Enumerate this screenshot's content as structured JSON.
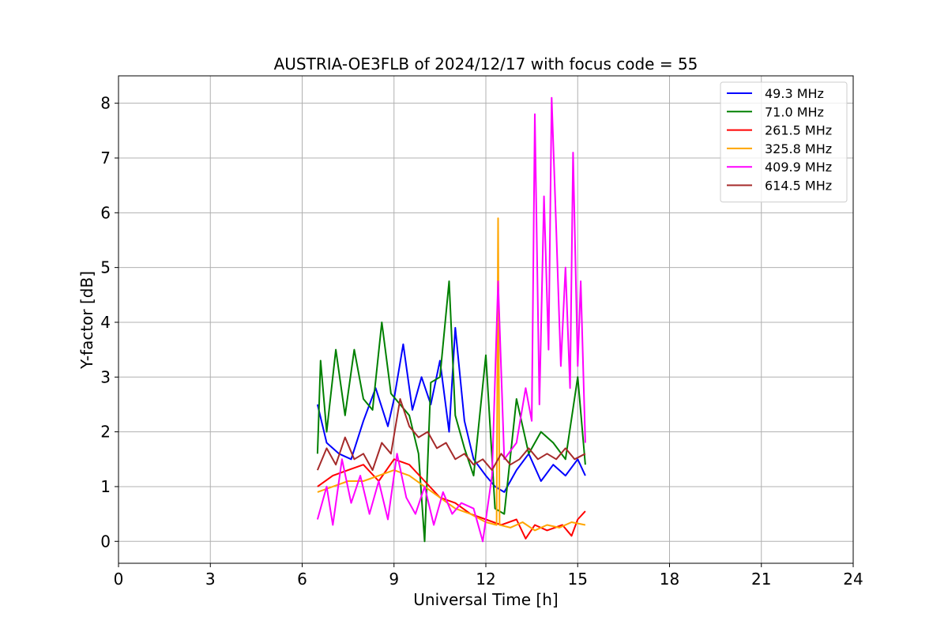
{
  "chart_data": {
    "type": "line",
    "title": "AUSTRIA-OE3FLB of 2024/12/17 with focus code = 55",
    "xlabel": "Universal Time [h]",
    "ylabel": "Y-factor [dB]",
    "xlim": [
      0,
      24
    ],
    "ylim": [
      -0.4,
      8.5
    ],
    "xticks": [
      0,
      3,
      6,
      9,
      12,
      15,
      18,
      21,
      24
    ],
    "yticks": [
      0,
      1,
      2,
      3,
      4,
      5,
      6,
      7,
      8
    ],
    "grid": true,
    "legend_position": "top-right",
    "series": [
      {
        "name": " 49.3 MHz",
        "color": "#0000ff",
        "points": [
          [
            6.5,
            2.5
          ],
          [
            6.8,
            1.8
          ],
          [
            7.2,
            1.6
          ],
          [
            7.6,
            1.5
          ],
          [
            8.0,
            2.2
          ],
          [
            8.4,
            2.8
          ],
          [
            8.8,
            2.1
          ],
          [
            9.0,
            2.6
          ],
          [
            9.3,
            3.6
          ],
          [
            9.6,
            2.4
          ],
          [
            9.9,
            3.0
          ],
          [
            10.2,
            2.5
          ],
          [
            10.5,
            3.3
          ],
          [
            10.8,
            2.0
          ],
          [
            11.0,
            3.9
          ],
          [
            11.3,
            2.2
          ],
          [
            11.6,
            1.5
          ],
          [
            12.0,
            1.2
          ],
          [
            12.3,
            1.0
          ],
          [
            12.6,
            0.9
          ],
          [
            13.0,
            1.3
          ],
          [
            13.4,
            1.6
          ],
          [
            13.8,
            1.1
          ],
          [
            14.2,
            1.4
          ],
          [
            14.6,
            1.2
          ],
          [
            15.0,
            1.5
          ],
          [
            15.25,
            1.2
          ]
        ]
      },
      {
        "name": " 71.0 MHz",
        "color": "#008000",
        "points": [
          [
            6.5,
            1.6
          ],
          [
            6.6,
            3.3
          ],
          [
            6.8,
            2.0
          ],
          [
            7.1,
            3.5
          ],
          [
            7.4,
            2.3
          ],
          [
            7.7,
            3.5
          ],
          [
            8.0,
            2.6
          ],
          [
            8.3,
            2.4
          ],
          [
            8.6,
            4.0
          ],
          [
            8.9,
            2.7
          ],
          [
            9.2,
            2.5
          ],
          [
            9.5,
            2.3
          ],
          [
            9.8,
            1.6
          ],
          [
            10.0,
            0.0
          ],
          [
            10.2,
            2.9
          ],
          [
            10.5,
            3.0
          ],
          [
            10.8,
            4.75
          ],
          [
            11.0,
            2.3
          ],
          [
            11.3,
            1.7
          ],
          [
            11.6,
            1.2
          ],
          [
            12.0,
            3.4
          ],
          [
            12.3,
            0.6
          ],
          [
            12.6,
            0.5
          ],
          [
            13.0,
            2.6
          ],
          [
            13.4,
            1.6
          ],
          [
            13.8,
            2.0
          ],
          [
            14.2,
            1.8
          ],
          [
            14.6,
            1.5
          ],
          [
            15.0,
            3.0
          ],
          [
            15.25,
            1.4
          ]
        ]
      },
      {
        "name": " 261.5 MHz",
        "color": "#ff0000",
        "points": [
          [
            6.5,
            1.0
          ],
          [
            7.0,
            1.2
          ],
          [
            7.5,
            1.3
          ],
          [
            8.0,
            1.4
          ],
          [
            8.5,
            1.1
          ],
          [
            9.0,
            1.5
          ],
          [
            9.5,
            1.4
          ],
          [
            10.0,
            1.1
          ],
          [
            10.5,
            0.8
          ],
          [
            11.0,
            0.7
          ],
          [
            11.5,
            0.5
          ],
          [
            12.0,
            0.4
          ],
          [
            12.5,
            0.3
          ],
          [
            13.0,
            0.4
          ],
          [
            13.3,
            0.05
          ],
          [
            13.6,
            0.3
          ],
          [
            14.0,
            0.2
          ],
          [
            14.5,
            0.3
          ],
          [
            14.8,
            0.1
          ],
          [
            15.0,
            0.4
          ],
          [
            15.25,
            0.55
          ]
        ]
      },
      {
        "name": " 325.8 MHz",
        "color": "#ffa500",
        "points": [
          [
            6.5,
            0.9
          ],
          [
            7.0,
            1.0
          ],
          [
            7.5,
            1.1
          ],
          [
            8.0,
            1.1
          ],
          [
            8.5,
            1.2
          ],
          [
            9.0,
            1.3
          ],
          [
            9.5,
            1.2
          ],
          [
            10.0,
            1.0
          ],
          [
            10.5,
            0.8
          ],
          [
            11.0,
            0.6
          ],
          [
            11.5,
            0.5
          ],
          [
            12.0,
            0.35
          ],
          [
            12.35,
            0.3
          ],
          [
            12.4,
            5.9
          ],
          [
            12.45,
            0.3
          ],
          [
            12.8,
            0.25
          ],
          [
            13.2,
            0.35
          ],
          [
            13.6,
            0.2
          ],
          [
            14.0,
            0.3
          ],
          [
            14.4,
            0.25
          ],
          [
            14.8,
            0.35
          ],
          [
            15.25,
            0.3
          ]
        ]
      },
      {
        "name": " 409.9 MHz",
        "color": "#ff00ff",
        "points": [
          [
            6.5,
            0.4
          ],
          [
            6.8,
            1.0
          ],
          [
            7.0,
            0.3
          ],
          [
            7.3,
            1.5
          ],
          [
            7.6,
            0.7
          ],
          [
            7.9,
            1.2
          ],
          [
            8.2,
            0.5
          ],
          [
            8.5,
            1.1
          ],
          [
            8.8,
            0.4
          ],
          [
            9.1,
            1.6
          ],
          [
            9.4,
            0.8
          ],
          [
            9.7,
            0.5
          ],
          [
            10.0,
            1.0
          ],
          [
            10.3,
            0.3
          ],
          [
            10.6,
            0.9
          ],
          [
            10.9,
            0.5
          ],
          [
            11.2,
            0.7
          ],
          [
            11.6,
            0.6
          ],
          [
            11.9,
            0.0
          ],
          [
            12.2,
            1.2
          ],
          [
            12.4,
            4.75
          ],
          [
            12.6,
            1.5
          ],
          [
            13.0,
            1.8
          ],
          [
            13.3,
            2.8
          ],
          [
            13.5,
            2.2
          ],
          [
            13.6,
            7.8
          ],
          [
            13.75,
            2.5
          ],
          [
            13.9,
            6.3
          ],
          [
            14.05,
            3.5
          ],
          [
            14.15,
            8.1
          ],
          [
            14.3,
            5.7
          ],
          [
            14.45,
            3.2
          ],
          [
            14.6,
            5.0
          ],
          [
            14.75,
            2.8
          ],
          [
            14.85,
            7.1
          ],
          [
            15.0,
            3.2
          ],
          [
            15.1,
            4.75
          ],
          [
            15.25,
            1.8
          ]
        ]
      },
      {
        "name": " 614.5 MHz",
        "color": "#a52a2a",
        "points": [
          [
            6.5,
            1.3
          ],
          [
            6.8,
            1.7
          ],
          [
            7.1,
            1.4
          ],
          [
            7.4,
            1.9
          ],
          [
            7.7,
            1.5
          ],
          [
            8.0,
            1.6
          ],
          [
            8.3,
            1.3
          ],
          [
            8.6,
            1.8
          ],
          [
            8.9,
            1.6
          ],
          [
            9.2,
            2.6
          ],
          [
            9.5,
            2.1
          ],
          [
            9.8,
            1.9
          ],
          [
            10.1,
            2.0
          ],
          [
            10.4,
            1.7
          ],
          [
            10.7,
            1.8
          ],
          [
            11.0,
            1.5
          ],
          [
            11.3,
            1.6
          ],
          [
            11.6,
            1.4
          ],
          [
            11.9,
            1.5
          ],
          [
            12.2,
            1.3
          ],
          [
            12.5,
            1.6
          ],
          [
            12.8,
            1.4
          ],
          [
            13.1,
            1.5
          ],
          [
            13.4,
            1.7
          ],
          [
            13.7,
            1.5
          ],
          [
            14.0,
            1.6
          ],
          [
            14.3,
            1.5
          ],
          [
            14.6,
            1.7
          ],
          [
            14.9,
            1.5
          ],
          [
            15.25,
            1.6
          ]
        ]
      }
    ]
  }
}
